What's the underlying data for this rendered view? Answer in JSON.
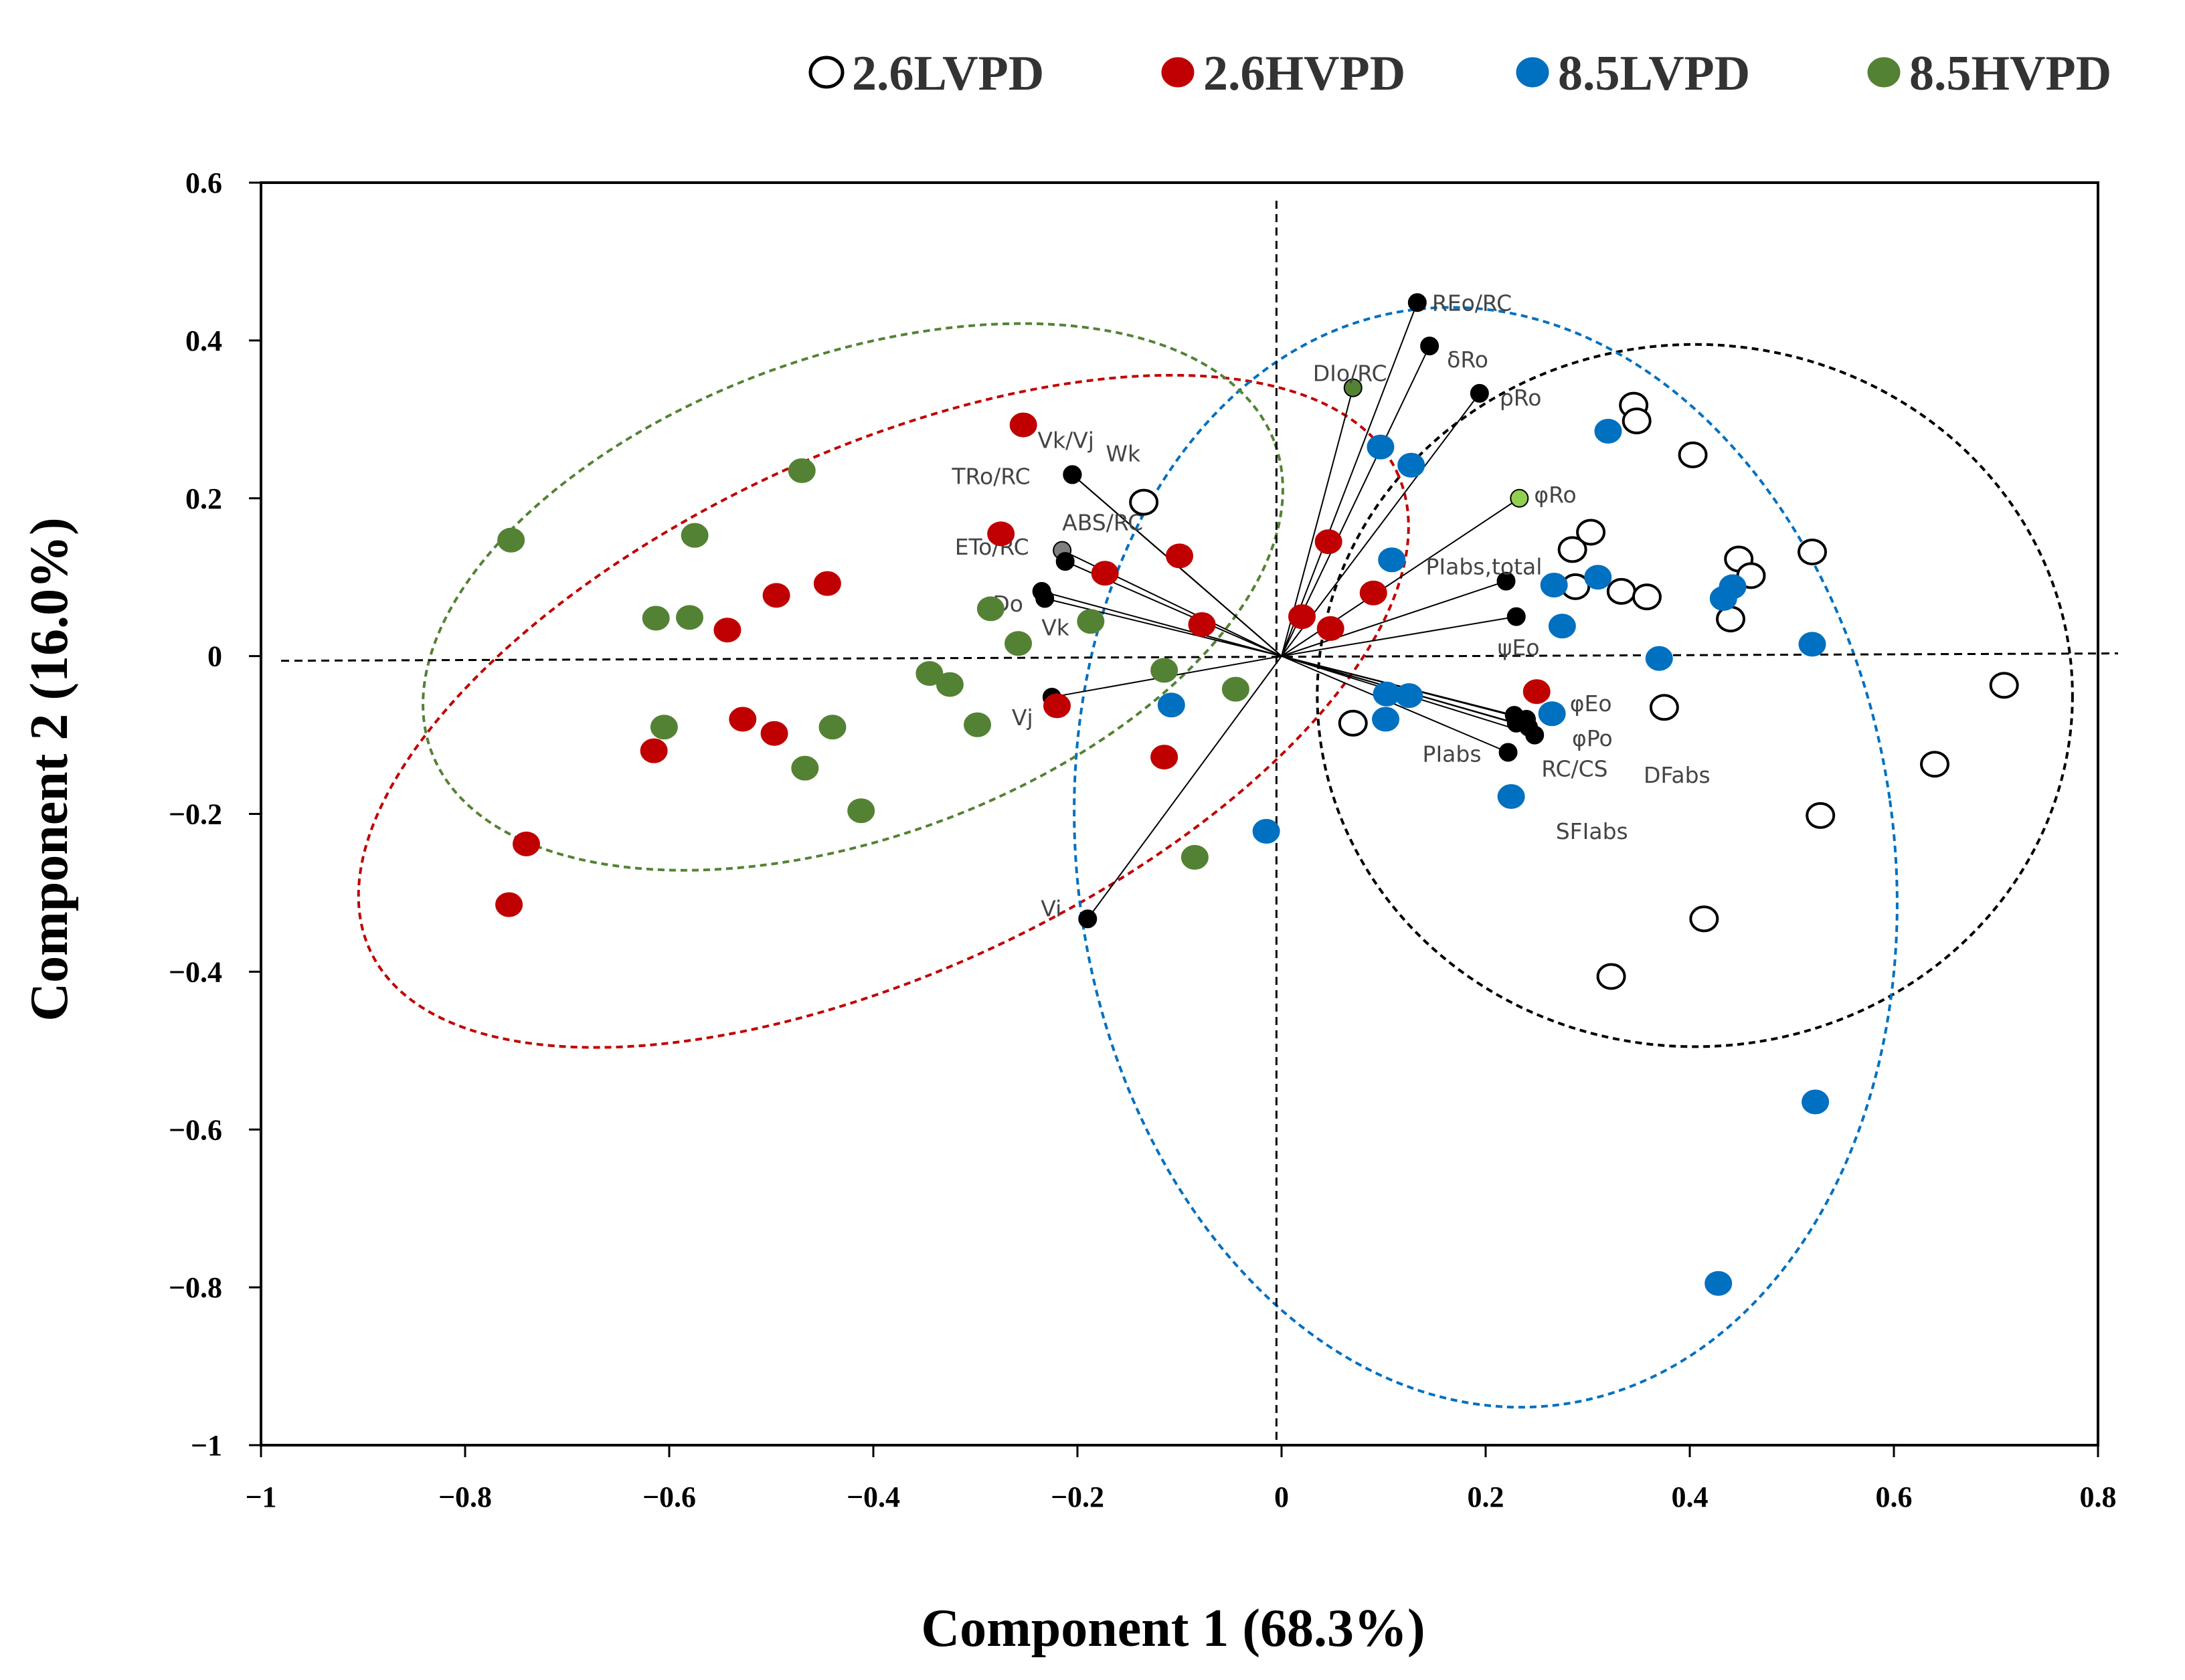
{
  "chart_data": {
    "type": "scatter",
    "title": "",
    "xlabel": "Component 1 (68.3%)",
    "ylabel": "Component 2 (16.0%)",
    "xlim": [
      -1,
      0.8
    ],
    "ylim": [
      -1,
      0.6
    ],
    "xticks": [
      -1,
      -0.8,
      -0.6,
      -0.4,
      -0.2,
      0,
      0.2,
      0.4,
      0.6,
      0.8
    ],
    "yticks": [
      0.6,
      0.4,
      0.2,
      0,
      -0.2,
      -0.4,
      -0.6,
      -0.8,
      -1
    ],
    "xtick_labels": [
      "−1",
      "−0.8",
      "−0.6",
      "−0.4",
      "−0.2",
      "0",
      "0.2",
      "0.4",
      "0.6",
      "0.8"
    ],
    "ytick_labels": [
      "0.6",
      "0.4",
      "0.2",
      "0",
      "−0.2",
      "−0.4",
      "−0.6",
      "−0.8",
      "−1"
    ],
    "grid": false,
    "legend_position": "top",
    "series": [
      {
        "name": "2.6LVPD",
        "fill": "#ffffff",
        "stroke": "#000000",
        "points": [
          [
            0.345,
            0.318
          ],
          [
            0.348,
            0.298
          ],
          [
            0.403,
            0.255
          ],
          [
            0.285,
            0.135
          ],
          [
            0.303,
            0.157
          ],
          [
            0.448,
            0.123
          ],
          [
            0.46,
            0.102
          ],
          [
            0.52,
            0.132
          ],
          [
            0.288,
            0.088
          ],
          [
            0.333,
            0.082
          ],
          [
            0.358,
            0.075
          ],
          [
            0.44,
            0.047
          ],
          [
            0.708,
            -0.037
          ],
          [
            0.375,
            -0.065
          ],
          [
            0.07,
            -0.085
          ],
          [
            0.64,
            -0.137
          ],
          [
            0.528,
            -0.202
          ],
          [
            0.414,
            -0.333
          ],
          [
            0.323,
            -0.406
          ],
          [
            -0.135,
            0.195
          ]
        ]
      },
      {
        "name": "2.6HVPD",
        "fill": "#c00000",
        "stroke": "#c00000",
        "points": [
          [
            -0.253,
            0.293
          ],
          [
            -0.275,
            0.155
          ],
          [
            -0.173,
            0.105
          ],
          [
            -0.1,
            0.127
          ],
          [
            -0.078,
            0.04
          ],
          [
            -0.445,
            0.092
          ],
          [
            -0.495,
            0.077
          ],
          [
            -0.543,
            0.033
          ],
          [
            -0.528,
            -0.08
          ],
          [
            -0.497,
            -0.098
          ],
          [
            -0.615,
            -0.12
          ],
          [
            -0.74,
            -0.238
          ],
          [
            -0.757,
            -0.315
          ],
          [
            -0.22,
            -0.063
          ],
          [
            -0.115,
            -0.128
          ],
          [
            0.046,
            0.145
          ],
          [
            0.02,
            0.05
          ],
          [
            0.048,
            0.035
          ],
          [
            0.09,
            0.08
          ],
          [
            0.25,
            -0.045
          ]
        ]
      },
      {
        "name": "8.5LVPD",
        "fill": "#0070c0",
        "stroke": "#0070c0",
        "points": [
          [
            0.32,
            0.285
          ],
          [
            0.097,
            0.265
          ],
          [
            0.127,
            0.242
          ],
          [
            0.108,
            0.122
          ],
          [
            0.267,
            0.09
          ],
          [
            0.31,
            0.1
          ],
          [
            0.442,
            0.088
          ],
          [
            0.433,
            0.073
          ],
          [
            0.275,
            0.038
          ],
          [
            0.37,
            -0.003
          ],
          [
            0.52,
            0.015
          ],
          [
            0.125,
            -0.05
          ],
          [
            0.102,
            -0.08
          ],
          [
            0.103,
            -0.048
          ],
          [
            0.265,
            -0.073
          ],
          [
            0.225,
            -0.178
          ],
          [
            -0.108,
            -0.062
          ],
          [
            -0.015,
            -0.222
          ],
          [
            0.523,
            -0.565
          ],
          [
            0.428,
            -0.795
          ]
        ]
      },
      {
        "name": "8.5HVPD",
        "fill": "#548235",
        "stroke": "#548235",
        "points": [
          [
            -0.47,
            0.235
          ],
          [
            -0.755,
            0.147
          ],
          [
            -0.575,
            0.153
          ],
          [
            -0.613,
            0.048
          ],
          [
            -0.58,
            0.049
          ],
          [
            -0.285,
            0.06
          ],
          [
            -0.258,
            0.016
          ],
          [
            -0.187,
            0.044
          ],
          [
            -0.345,
            -0.022
          ],
          [
            -0.325,
            -0.036
          ],
          [
            -0.115,
            -0.018
          ],
          [
            -0.045,
            -0.042
          ],
          [
            -0.605,
            -0.09
          ],
          [
            -0.44,
            -0.09
          ],
          [
            -0.298,
            -0.087
          ],
          [
            -0.467,
            -0.142
          ],
          [
            -0.412,
            -0.196
          ],
          [
            -0.085,
            -0.255
          ]
        ]
      }
    ],
    "loading_vectors": [
      {
        "name": "REo/RC",
        "x": 0.133,
        "y": 0.448,
        "color": "#000000"
      },
      {
        "name": "δRo",
        "x": 0.145,
        "y": 0.393,
        "color": "#000000"
      },
      {
        "name": "DIo/RC",
        "x": 0.07,
        "y": 0.34,
        "color": "#548235"
      },
      {
        "name": "ρRo",
        "x": 0.194,
        "y": 0.333,
        "color": "#000000"
      },
      {
        "name": "φRo",
        "x": 0.233,
        "y": 0.2,
        "color": "#92d050"
      },
      {
        "name": "PIabs,total",
        "x": 0.22,
        "y": 0.095,
        "color": "#000000"
      },
      {
        "name": "ψEo",
        "x": 0.23,
        "y": 0.05,
        "color": "#000000"
      },
      {
        "name": "φEo",
        "x": 0.23,
        "y": -0.085,
        "color": "#000000"
      },
      {
        "name": "φPo",
        "x": 0.242,
        "y": -0.09,
        "color": "#000000"
      },
      {
        "name": "RC/CS",
        "x": 0.248,
        "y": -0.1,
        "color": "#000000"
      },
      {
        "name": "PIabs",
        "x": 0.222,
        "y": -0.122,
        "color": "#000000"
      },
      {
        "name": "DFabs",
        "x": 0.24,
        "y": -0.08,
        "color": "#000000"
      },
      {
        "name": "SFIabs",
        "x": 0.228,
        "y": -0.075,
        "color": "#000000"
      },
      {
        "name": "Vk/Vj",
        "x": -0.205,
        "y": 0.23,
        "color": "#000000"
      },
      {
        "name": "Wk",
        "x": -0.205,
        "y": 0.23,
        "color": "#000000"
      },
      {
        "name": "TRo/RC",
        "x": -0.205,
        "y": 0.23,
        "color": "#000000"
      },
      {
        "name": "ABS/RC",
        "x": -0.215,
        "y": 0.134,
        "color": "#7f7f7f"
      },
      {
        "name": "ETo/RC",
        "x": -0.212,
        "y": 0.12,
        "color": "#000000"
      },
      {
        "name": "φDo",
        "x": -0.235,
        "y": 0.082,
        "color": "#000000"
      },
      {
        "name": "Vk",
        "x": -0.232,
        "y": 0.073,
        "color": "#000000"
      },
      {
        "name": "Vj",
        "x": -0.225,
        "y": -0.052,
        "color": "#000000"
      },
      {
        "name": "Vi",
        "x": -0.19,
        "y": -0.333,
        "color": "#000000"
      }
    ],
    "ellipses": [
      {
        "group": "2.6LVPD",
        "color": "#000000",
        "cx": 0.405,
        "cy": -0.05,
        "rx": 0.37,
        "ry": 0.445,
        "angle": 0
      },
      {
        "group": "2.6HVPD",
        "color": "#c00000",
        "cx": -0.39,
        "cy": -0.07,
        "rx": 0.555,
        "ry": 0.33,
        "angle": 25
      },
      {
        "group": "8.5LVPD",
        "color": "#0070c0",
        "cx": 0.2,
        "cy": -0.255,
        "rx": 0.4,
        "ry": 0.7,
        "angle": 8
      },
      {
        "group": "8.5HVPD",
        "color": "#548235",
        "cx": -0.42,
        "cy": 0.075,
        "rx": 0.44,
        "ry": 0.305,
        "angle": 20
      }
    ]
  }
}
